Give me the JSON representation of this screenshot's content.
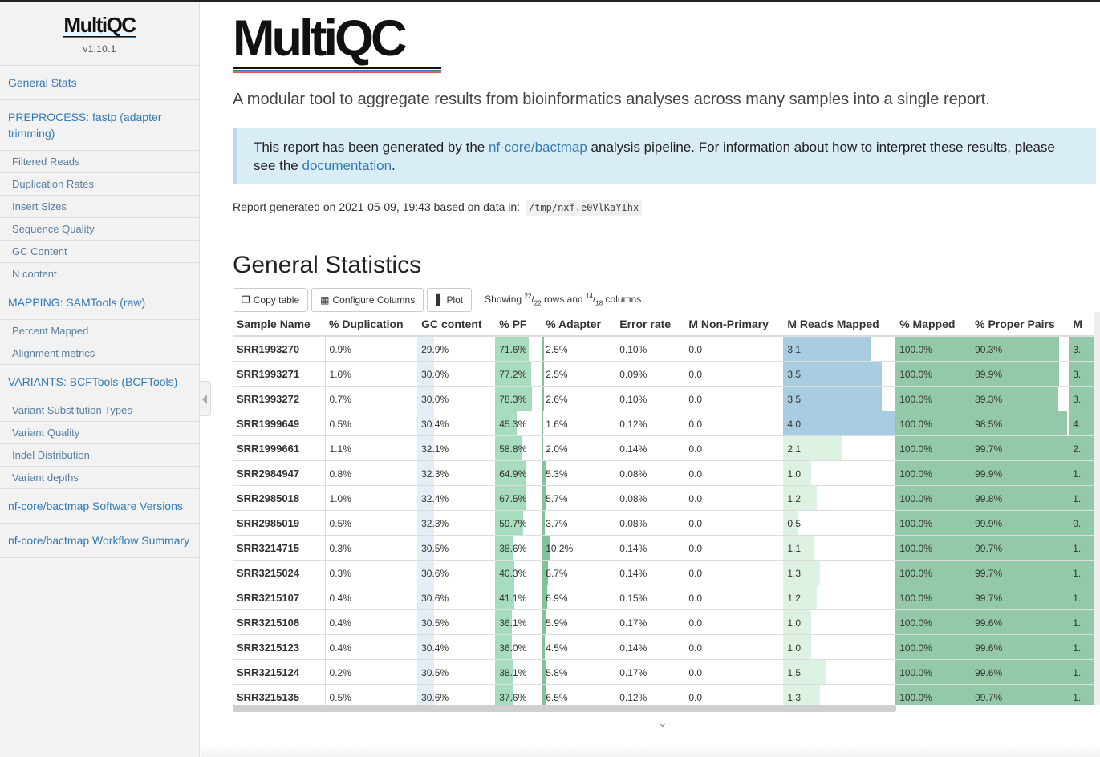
{
  "sidebar": {
    "logo": "MultiQC",
    "version": "v1.10.1",
    "items": [
      {
        "label": "General Stats",
        "level": 1
      },
      {
        "label": "PREPROCESS: fastp (adapter trimming)",
        "level": 1
      },
      {
        "label": "Filtered Reads",
        "level": 2
      },
      {
        "label": "Duplication Rates",
        "level": 2
      },
      {
        "label": "Insert Sizes",
        "level": 2
      },
      {
        "label": "Sequence Quality",
        "level": 2
      },
      {
        "label": "GC Content",
        "level": 2
      },
      {
        "label": "N content",
        "level": 2
      },
      {
        "label": "MAPPING: SAMTools (raw)",
        "level": 1
      },
      {
        "label": "Percent Mapped",
        "level": 2
      },
      {
        "label": "Alignment metrics",
        "level": 2
      },
      {
        "label": "VARIANTS: BCFTools (BCFTools)",
        "level": 1
      },
      {
        "label": "Variant Substitution Types",
        "level": 2
      },
      {
        "label": "Variant Quality",
        "level": 2
      },
      {
        "label": "Indel Distribution",
        "level": 2
      },
      {
        "label": "Variant depths",
        "level": 2
      },
      {
        "label": "nf-core/bactmap Software Versions",
        "level": 1
      },
      {
        "label": "nf-core/bactmap Workflow Summary",
        "level": 1
      }
    ]
  },
  "header": {
    "logo": "MultiQC",
    "tagline": "A modular tool to aggregate results from bioinformatics analyses across many samples into a single report."
  },
  "alert": {
    "pre": "This report has been generated by the ",
    "pipeline_link": "nf-core/bactmap",
    "mid": " analysis pipeline. For information about how to interpret these results, please see the ",
    "doc_link": "documentation",
    "post": "."
  },
  "report": {
    "generated_text": "Report generated on 2021-05-09, 19:43 based on data in:",
    "path": "/tmp/nxf.e0VlKaYIhx"
  },
  "section_title": "General Statistics",
  "toolbar": {
    "copy": "Copy table",
    "configure": "Configure Columns",
    "plot": "Plot",
    "showing_pre": "Showing ",
    "rows_sup": "22",
    "rows_sub": "22",
    "rows_word": " rows and ",
    "cols_sup": "14",
    "cols_sub": "18",
    "cols_word": " columns."
  },
  "table": {
    "columns": [
      "Sample Name",
      "% Duplication",
      "GC content",
      "% PF",
      "% Adapter",
      "Error rate",
      "M Non-Primary",
      "M Reads Mapped",
      "% Mapped",
      "% Proper Pairs",
      "M"
    ],
    "rows": [
      {
        "sample": "SRR1993270",
        "dup": "0.9%",
        "gc": "29.9%",
        "pf": "71.6%",
        "adapter": "2.5%",
        "err": "0.10%",
        "nonprim": "0.0",
        "mapped_reads": "3.1",
        "pct_mapped": "100.0%",
        "proper": "90.3%",
        "last": "3."
      },
      {
        "sample": "SRR1993271",
        "dup": "1.0%",
        "gc": "30.0%",
        "pf": "77.2%",
        "adapter": "2.5%",
        "err": "0.09%",
        "nonprim": "0.0",
        "mapped_reads": "3.5",
        "pct_mapped": "100.0%",
        "proper": "89.9%",
        "last": "3."
      },
      {
        "sample": "SRR1993272",
        "dup": "0.7%",
        "gc": "30.0%",
        "pf": "78.3%",
        "adapter": "2.6%",
        "err": "0.10%",
        "nonprim": "0.0",
        "mapped_reads": "3.5",
        "pct_mapped": "100.0%",
        "proper": "89.3%",
        "last": "3."
      },
      {
        "sample": "SRR1999649",
        "dup": "0.5%",
        "gc": "30.4%",
        "pf": "45.3%",
        "adapter": "1.6%",
        "err": "0.12%",
        "nonprim": "0.0",
        "mapped_reads": "4.0",
        "pct_mapped": "100.0%",
        "proper": "98.5%",
        "last": "4."
      },
      {
        "sample": "SRR1999661",
        "dup": "1.1%",
        "gc": "32.1%",
        "pf": "58.8%",
        "adapter": "2.0%",
        "err": "0.14%",
        "nonprim": "0.0",
        "mapped_reads": "2.1",
        "pct_mapped": "100.0%",
        "proper": "99.7%",
        "last": "2."
      },
      {
        "sample": "SRR2984947",
        "dup": "0.8%",
        "gc": "32.3%",
        "pf": "64.9%",
        "adapter": "5.3%",
        "err": "0.08%",
        "nonprim": "0.0",
        "mapped_reads": "1.0",
        "pct_mapped": "100.0%",
        "proper": "99.9%",
        "last": "1."
      },
      {
        "sample": "SRR2985018",
        "dup": "1.0%",
        "gc": "32.4%",
        "pf": "67.5%",
        "adapter": "5.7%",
        "err": "0.08%",
        "nonprim": "0.0",
        "mapped_reads": "1.2",
        "pct_mapped": "100.0%",
        "proper": "99.8%",
        "last": "1."
      },
      {
        "sample": "SRR2985019",
        "dup": "0.5%",
        "gc": "32.3%",
        "pf": "59.7%",
        "adapter": "3.7%",
        "err": "0.08%",
        "nonprim": "0.0",
        "mapped_reads": "0.5",
        "pct_mapped": "100.0%",
        "proper": "99.9%",
        "last": "0."
      },
      {
        "sample": "SRR3214715",
        "dup": "0.3%",
        "gc": "30.5%",
        "pf": "38.6%",
        "adapter": "10.2%",
        "err": "0.14%",
        "nonprim": "0.0",
        "mapped_reads": "1.1",
        "pct_mapped": "100.0%",
        "proper": "99.7%",
        "last": "1."
      },
      {
        "sample": "SRR3215024",
        "dup": "0.3%",
        "gc": "30.6%",
        "pf": "40.3%",
        "adapter": "8.7%",
        "err": "0.14%",
        "nonprim": "0.0",
        "mapped_reads": "1.3",
        "pct_mapped": "100.0%",
        "proper": "99.7%",
        "last": "1."
      },
      {
        "sample": "SRR3215107",
        "dup": "0.4%",
        "gc": "30.6%",
        "pf": "41.1%",
        "adapter": "6.9%",
        "err": "0.15%",
        "nonprim": "0.0",
        "mapped_reads": "1.2",
        "pct_mapped": "100.0%",
        "proper": "99.7%",
        "last": "1."
      },
      {
        "sample": "SRR3215108",
        "dup": "0.4%",
        "gc": "30.5%",
        "pf": "36.1%",
        "adapter": "5.9%",
        "err": "0.17%",
        "nonprim": "0.0",
        "mapped_reads": "1.0",
        "pct_mapped": "100.0%",
        "proper": "99.6%",
        "last": "1."
      },
      {
        "sample": "SRR3215123",
        "dup": "0.4%",
        "gc": "30.4%",
        "pf": "36.0%",
        "adapter": "4.5%",
        "err": "0.14%",
        "nonprim": "0.0",
        "mapped_reads": "1.0",
        "pct_mapped": "100.0%",
        "proper": "99.6%",
        "last": "1."
      },
      {
        "sample": "SRR3215124",
        "dup": "0.2%",
        "gc": "30.5%",
        "pf": "38.1%",
        "adapter": "5.8%",
        "err": "0.17%",
        "nonprim": "0.0",
        "mapped_reads": "1.5",
        "pct_mapped": "100.0%",
        "proper": "99.6%",
        "last": "1."
      },
      {
        "sample": "SRR3215135",
        "dup": "0.5%",
        "gc": "30.6%",
        "pf": "37.6%",
        "adapter": "6.5%",
        "err": "0.12%",
        "nonprim": "0.0",
        "mapped_reads": "1.3",
        "pct_mapped": "100.0%",
        "proper": "99.7%",
        "last": "1."
      }
    ]
  },
  "colors": {
    "link": "#337ab7",
    "alert_bg": "#d9edf7",
    "gc_bar": "#e3eef8",
    "pf_bar": "#a8dcbf",
    "adapter_bar": "#7fc39a",
    "mapped_bar_blue": "#a8cce2",
    "mapped_bar_green": "#ddf2e3",
    "pct_mapped_bar": "#93c9a8"
  }
}
